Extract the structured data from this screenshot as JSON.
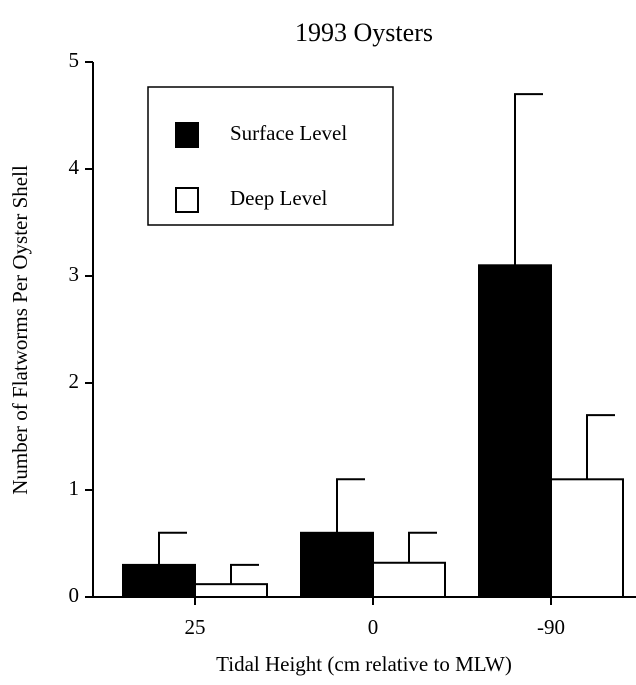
{
  "chart_data": {
    "type": "bar",
    "title": "1993 Oysters",
    "x_label": "Tidal Height (cm relative to MLW)",
    "y_label": "Number of Flatworms Per Oyster Shell",
    "categories": [
      "25",
      "0",
      "-90"
    ],
    "series": [
      {
        "name": "Surface Level",
        "color": "#000000",
        "values": [
          0.3,
          0.6,
          3.1
        ],
        "errors": [
          0.3,
          0.5,
          1.6
        ]
      },
      {
        "name": "Deep Level",
        "color": "#ffffff",
        "values": [
          0.12,
          0.32,
          1.1
        ],
        "errors": [
          0.18,
          0.28,
          0.6
        ]
      }
    ],
    "ylim": [
      0,
      5
    ],
    "yticks": [
      0,
      1,
      2,
      3,
      4,
      5
    ],
    "grid": false
  }
}
